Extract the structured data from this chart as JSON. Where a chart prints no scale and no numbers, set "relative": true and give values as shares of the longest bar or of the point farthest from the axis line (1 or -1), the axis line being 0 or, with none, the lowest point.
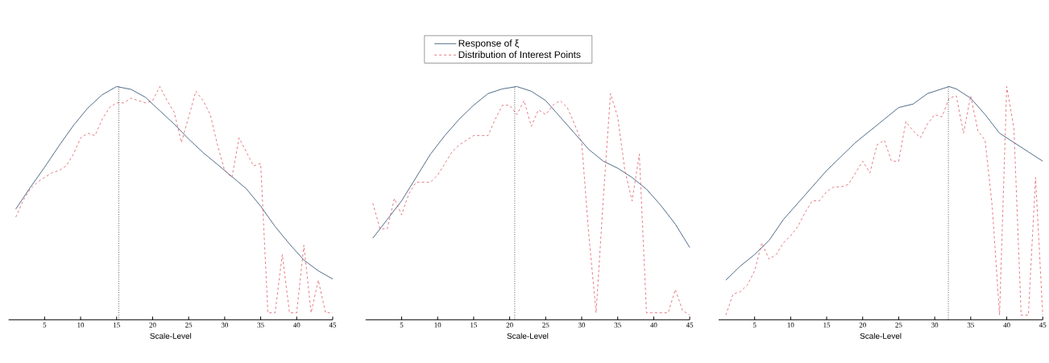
{
  "chart_data": [
    {
      "type": "line",
      "relative": true,
      "xlabel": "Scale-Level",
      "xlim": [
        0,
        45
      ],
      "xticks": [
        5,
        10,
        15,
        20,
        25,
        30,
        35,
        40,
        45
      ],
      "series": [
        {
          "color": "#3b5a7a",
          "line_style": "solid",
          "x": [
            1,
            3,
            5,
            7,
            9,
            11,
            13,
            15,
            17,
            19,
            21,
            23,
            25,
            27,
            29,
            31,
            33,
            35,
            37,
            39,
            41,
            43,
            45
          ],
          "values": [
            0.475,
            0.567,
            0.654,
            0.746,
            0.833,
            0.908,
            0.965,
            1.0,
            0.988,
            0.954,
            0.896,
            0.839,
            0.775,
            0.717,
            0.666,
            0.614,
            0.562,
            0.487,
            0.4,
            0.325,
            0.256,
            0.21,
            0.175
          ]
        },
        {
          "color": "#d9414e",
          "line_style": "dashed",
          "x": [
            1,
            2,
            3,
            4,
            5,
            6,
            7,
            8,
            9,
            10,
            11,
            12,
            13,
            14,
            15,
            16,
            17,
            18,
            19,
            20,
            21,
            22,
            23,
            24,
            25,
            26,
            27,
            28,
            29,
            30,
            31,
            32,
            33,
            34,
            35,
            36,
            37,
            38,
            39,
            40,
            41,
            42,
            43,
            44,
            45
          ],
          "values": [
            0.44,
            0.51,
            0.56,
            0.59,
            0.61,
            0.63,
            0.64,
            0.66,
            0.71,
            0.78,
            0.8,
            0.79,
            0.86,
            0.91,
            0.93,
            0.93,
            0.95,
            0.94,
            0.93,
            0.94,
            1.0,
            0.94,
            0.89,
            0.76,
            0.87,
            0.98,
            0.94,
            0.88,
            0.75,
            0.64,
            0.61,
            0.78,
            0.72,
            0.66,
            0.67,
            0.03,
            0.03,
            0.28,
            0.03,
            0.03,
            0.32,
            0.03,
            0.17,
            0.03,
            0.03
          ]
        }
      ],
      "ref_lines": [
        {
          "axis": "x",
          "value": 15.3,
          "color": "#000000",
          "line_style": "dotted"
        }
      ]
    },
    {
      "type": "line",
      "relative": true,
      "xlabel": "Scale-Level",
      "xlim": [
        0,
        45
      ],
      "xticks": [
        5,
        10,
        15,
        20,
        25,
        30,
        35,
        40,
        45
      ],
      "legend": "top",
      "series": [
        {
          "name": "Response of ξ",
          "color": "#3b5a7a",
          "line_style": "solid",
          "x": [
            1,
            3,
            5,
            7,
            9,
            11,
            13,
            15,
            17,
            19,
            21,
            23,
            25,
            27,
            29,
            31,
            33,
            35,
            37,
            39,
            41,
            43,
            45
          ],
          "values": [
            0.35,
            0.43,
            0.51,
            0.61,
            0.71,
            0.79,
            0.86,
            0.92,
            0.97,
            0.99,
            1.0,
            0.98,
            0.94,
            0.87,
            0.8,
            0.73,
            0.68,
            0.65,
            0.61,
            0.56,
            0.49,
            0.41,
            0.31
          ]
        },
        {
          "name": "Distribution of Interest Points",
          "color": "#d9414e",
          "line_style": "dashed",
          "x": [
            1,
            2,
            3,
            4,
            5,
            6,
            7,
            8,
            9,
            10,
            11,
            12,
            13,
            14,
            15,
            16,
            17,
            18,
            19,
            20,
            21,
            22,
            23,
            24,
            25,
            26,
            27,
            28,
            29,
            30,
            31,
            32,
            33,
            34,
            35,
            36,
            37,
            38,
            39,
            40,
            41,
            42,
            43,
            44,
            45
          ],
          "values": [
            0.5,
            0.39,
            0.39,
            0.52,
            0.45,
            0.54,
            0.59,
            0.59,
            0.59,
            0.62,
            0.67,
            0.72,
            0.75,
            0.77,
            0.79,
            0.79,
            0.79,
            0.86,
            0.92,
            0.92,
            0.88,
            0.94,
            0.83,
            0.9,
            0.88,
            0.92,
            0.94,
            0.91,
            0.84,
            0.76,
            0.36,
            0.03,
            0.52,
            0.97,
            0.87,
            0.64,
            0.51,
            0.71,
            0.03,
            0.03,
            0.03,
            0.03,
            0.13,
            0.04,
            0.02
          ]
        }
      ],
      "ref_lines": [
        {
          "axis": "x",
          "value": 20.7,
          "color": "#000000",
          "line_style": "dotted"
        }
      ]
    },
    {
      "type": "line",
      "relative": true,
      "xlabel": "Scale-Level",
      "xlim": [
        0,
        45
      ],
      "xticks": [
        5,
        10,
        15,
        20,
        25,
        30,
        35,
        40,
        45
      ],
      "series": [
        {
          "color": "#3b5a7a",
          "line_style": "solid",
          "x": [
            1,
            3,
            5,
            7,
            9,
            11,
            13,
            15,
            17,
            19,
            21,
            23,
            25,
            27,
            29,
            31,
            32,
            33,
            35,
            37,
            39,
            41,
            43,
            45
          ],
          "values": [
            0.17,
            0.23,
            0.28,
            0.34,
            0.43,
            0.5,
            0.57,
            0.64,
            0.7,
            0.76,
            0.81,
            0.86,
            0.91,
            0.925,
            0.97,
            0.99,
            1.0,
            0.99,
            0.95,
            0.88,
            0.8,
            0.76,
            0.72,
            0.68
          ]
        },
        {
          "color": "#d9414e",
          "line_style": "dashed",
          "x": [
            1,
            2,
            3,
            4,
            5,
            6,
            7,
            8,
            9,
            10,
            11,
            12,
            13,
            14,
            15,
            16,
            17,
            18,
            19,
            20,
            21,
            22,
            23,
            24,
            25,
            26,
            27,
            28,
            29,
            30,
            31,
            32,
            33,
            34,
            35,
            36,
            37,
            38,
            39,
            40,
            41,
            42,
            43,
            44,
            45
          ],
          "values": [
            0.02,
            0.11,
            0.12,
            0.15,
            0.21,
            0.33,
            0.26,
            0.28,
            0.33,
            0.36,
            0.4,
            0.46,
            0.51,
            0.51,
            0.55,
            0.57,
            0.57,
            0.58,
            0.63,
            0.68,
            0.63,
            0.75,
            0.77,
            0.68,
            0.68,
            0.85,
            0.81,
            0.78,
            0.84,
            0.88,
            0.87,
            0.95,
            0.96,
            0.8,
            0.96,
            0.81,
            0.77,
            0.48,
            0.02,
            1.0,
            0.82,
            0.02,
            0.02,
            0.61,
            0.02
          ]
        }
      ],
      "ref_lines": [
        {
          "axis": "x",
          "value": 31.9,
          "color": "#000000",
          "line_style": "dotted"
        }
      ]
    }
  ]
}
